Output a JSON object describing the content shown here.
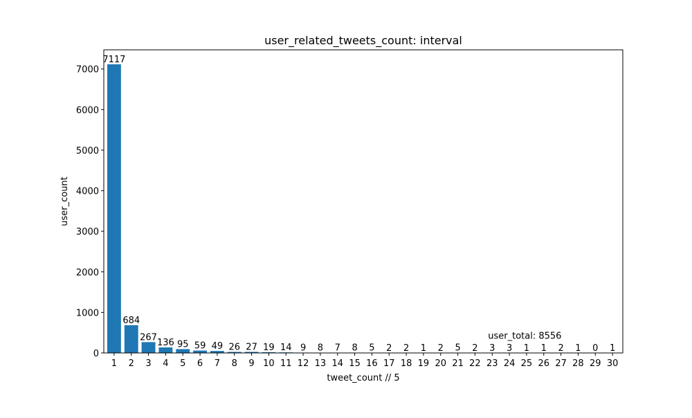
{
  "chart_data": {
    "type": "bar",
    "title": "user_related_tweets_count: interval",
    "xlabel": "tweet_count // 5",
    "ylabel": "user_count",
    "categories": [
      "1",
      "2",
      "3",
      "4",
      "5",
      "6",
      "7",
      "8",
      "9",
      "10",
      "11",
      "12",
      "13",
      "14",
      "15",
      "16",
      "17",
      "18",
      "19",
      "20",
      "21",
      "22",
      "23",
      "24",
      "25",
      "26",
      "27",
      "28",
      "29",
      "30"
    ],
    "values": [
      7117,
      684,
      267,
      136,
      95,
      59,
      49,
      26,
      27,
      19,
      14,
      9,
      8,
      7,
      8,
      5,
      2,
      2,
      1,
      2,
      5,
      2,
      3,
      3,
      1,
      1,
      2,
      1,
      0,
      1
    ],
    "ylim": [
      0,
      7473
    ],
    "yticks": [
      0,
      1000,
      2000,
      3000,
      4000,
      5000,
      6000,
      7000
    ],
    "annotation": "user_total: 8556",
    "annotation_anchor": {
      "x": 23,
      "y": 350
    },
    "bar_color": "#1f77b4",
    "grid": false,
    "legend": "none"
  }
}
